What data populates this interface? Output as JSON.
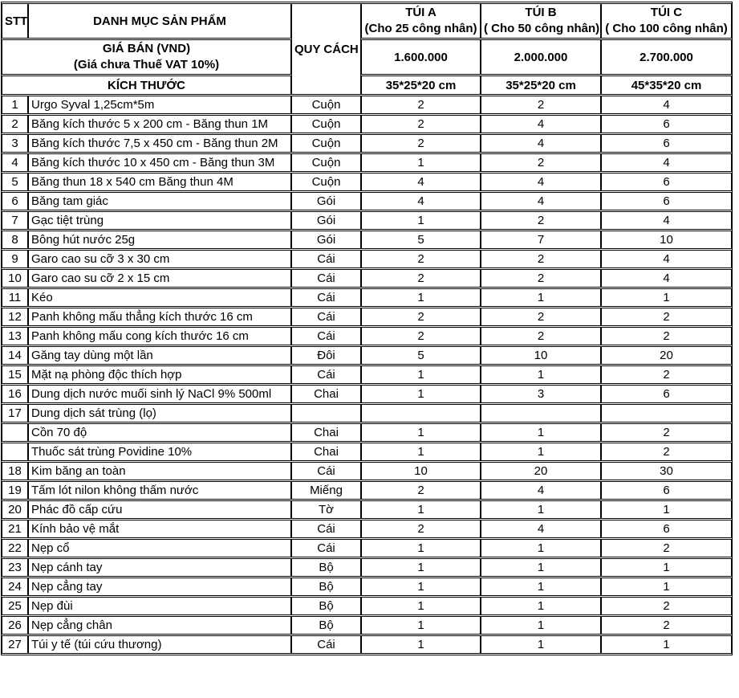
{
  "colors": {
    "border": "#000000",
    "text": "#000000",
    "background": "#ffffff"
  },
  "table": {
    "header": {
      "stt": "STT",
      "product": "DANH MỤC SẢN PHẨM",
      "spec": "QUY CÁCH",
      "price_label": "GIÁ BÁN (VND)",
      "price_note": "(Giá chưa Thuế VAT 10%)",
      "size_label": "KÍCH THƯỚC",
      "bags": [
        {
          "name": "TÚI A",
          "capacity": "(Cho 25 công nhân)",
          "price": "1.600.000",
          "size": "35*25*20 cm"
        },
        {
          "name": "TÚI B",
          "capacity": "( Cho 50 công nhân)",
          "price": "2.000.000",
          "size": "35*25*20 cm"
        },
        {
          "name": "TÚI C",
          "capacity": "( Cho 100 công nhân)",
          "price": "2.700.000",
          "size": "45*35*20 cm"
        }
      ]
    },
    "rows": [
      {
        "stt": "1",
        "product": "Urgo Syval 1,25cm*5m",
        "unit": "Cuộn",
        "qty_a": "2",
        "qty_b": "2",
        "qty_c": "4"
      },
      {
        "stt": "2",
        "product": "Băng kích thước 5 x 200 cm - Băng thun 1M",
        "unit": "Cuộn",
        "qty_a": "2",
        "qty_b": "4",
        "qty_c": "6"
      },
      {
        "stt": "3",
        "product": "Băng kích thước 7,5 x 450 cm - Băng thun 2M",
        "unit": "Cuộn",
        "qty_a": "2",
        "qty_b": "4",
        "qty_c": "6"
      },
      {
        "stt": "4",
        "product": "Băng kích thước 10 x 450 cm - Băng thun 3M",
        "unit": "Cuộn",
        "qty_a": "1",
        "qty_b": "2",
        "qty_c": "4"
      },
      {
        "stt": "5",
        "product": "Băng thun 18 x 540 cm Băng thun 4M",
        "unit": "Cuộn",
        "qty_a": "4",
        "qty_b": "4",
        "qty_c": "6"
      },
      {
        "stt": "6",
        "product": "Băng tam giác",
        "unit": "Gói",
        "qty_a": "4",
        "qty_b": "4",
        "qty_c": "6"
      },
      {
        "stt": "7",
        "product": "Gạc tiệt trùng",
        "unit": "Gói",
        "qty_a": "1",
        "qty_b": "2",
        "qty_c": "4"
      },
      {
        "stt": "8",
        "product": "Bông hút nước 25g",
        "unit": "Gói",
        "qty_a": "5",
        "qty_b": "7",
        "qty_c": "10"
      },
      {
        "stt": "9",
        "product": "Garo cao su cỡ 3 x 30 cm",
        "unit": "Cái",
        "qty_a": "2",
        "qty_b": "2",
        "qty_c": "4"
      },
      {
        "stt": "10",
        "product": "Garo cao su cỡ 2 x 15 cm",
        "unit": "Cái",
        "qty_a": "2",
        "qty_b": "2",
        "qty_c": "4"
      },
      {
        "stt": "11",
        "product": "Kéo",
        "unit": "Cái",
        "qty_a": "1",
        "qty_b": "1",
        "qty_c": "1"
      },
      {
        "stt": "12",
        "product": "Panh không mấu thẳng kích thước 16 cm",
        "unit": "Cái",
        "qty_a": "2",
        "qty_b": "2",
        "qty_c": "2"
      },
      {
        "stt": "13",
        "product": "Panh không mấu cong kích thước 16 cm",
        "unit": "Cái",
        "qty_a": "2",
        "qty_b": "2",
        "qty_c": "2"
      },
      {
        "stt": "14",
        "product": "Găng tay dùng một lần",
        "unit": "Đôi",
        "qty_a": "5",
        "qty_b": "10",
        "qty_c": "20"
      },
      {
        "stt": "15",
        "product": "Mặt nạ phòng độc thích hợp",
        "unit": "Cái",
        "qty_a": "1",
        "qty_b": "1",
        "qty_c": "2"
      },
      {
        "stt": "16",
        "product": "Dung dịch nước muối sinh lý NaCl 9% 500ml",
        "unit": "Chai",
        "qty_a": "1",
        "qty_b": "3",
        "qty_c": "6"
      },
      {
        "stt": "17",
        "product": "Dung dịch sát trùng (lọ)",
        "unit": "",
        "qty_a": "",
        "qty_b": "",
        "qty_c": ""
      },
      {
        "stt": "",
        "product": "Cồn 70 độ",
        "unit": "Chai",
        "qty_a": "1",
        "qty_b": "1",
        "qty_c": "2"
      },
      {
        "stt": "",
        "product": "Thuốc sát trùng Povidine 10%",
        "unit": "Chai",
        "qty_a": "1",
        "qty_b": "1",
        "qty_c": "2"
      },
      {
        "stt": "18",
        "product": "Kim băng an toàn",
        "unit": "Cái",
        "qty_a": "10",
        "qty_b": "20",
        "qty_c": "30"
      },
      {
        "stt": "19",
        "product": "Tấm lót nilon không thấm nước",
        "unit": "Miếng",
        "qty_a": "2",
        "qty_b": "4",
        "qty_c": "6"
      },
      {
        "stt": "20",
        "product": "Phác đồ cấp cứu",
        "unit": "Tờ",
        "qty_a": "1",
        "qty_b": "1",
        "qty_c": "1"
      },
      {
        "stt": "21",
        "product": "Kính bảo vệ mắt",
        "unit": "Cái",
        "qty_a": "2",
        "qty_b": "4",
        "qty_c": "6"
      },
      {
        "stt": "22",
        "product": "Nẹp cổ",
        "unit": "Cái",
        "qty_a": "1",
        "qty_b": "1",
        "qty_c": "2"
      },
      {
        "stt": "23",
        "product": "Nẹp cánh tay",
        "unit": "Bộ",
        "qty_a": "1",
        "qty_b": "1",
        "qty_c": "1"
      },
      {
        "stt": "24",
        "product": "Nẹp cẳng tay",
        "unit": "Bộ",
        "qty_a": "1",
        "qty_b": "1",
        "qty_c": "1"
      },
      {
        "stt": "25",
        "product": "Nẹp đùi",
        "unit": "Bộ",
        "qty_a": "1",
        "qty_b": "1",
        "qty_c": "2"
      },
      {
        "stt": "26",
        "product": "Nẹp cẳng chân",
        "unit": "Bộ",
        "qty_a": "1",
        "qty_b": "1",
        "qty_c": "2"
      },
      {
        "stt": "27",
        "product": "Túi y tế (túi cứu thương)",
        "unit": "Cái",
        "qty_a": "1",
        "qty_b": "1",
        "qty_c": "1"
      }
    ]
  }
}
